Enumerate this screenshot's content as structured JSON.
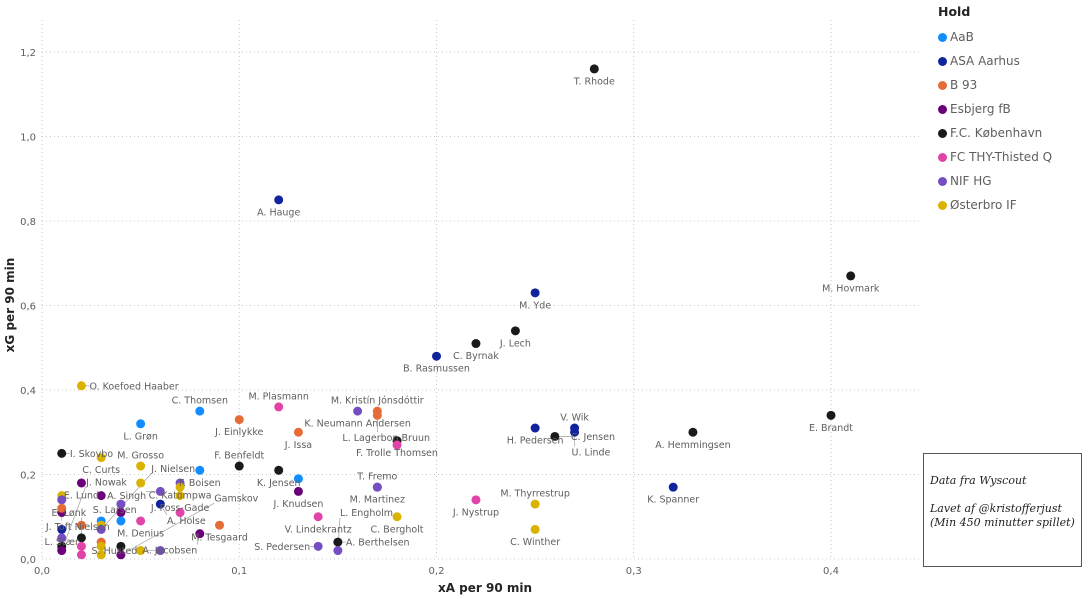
{
  "chart_data": {
    "type": "scatter",
    "xlabel": "xA per 90 min",
    "ylabel": "xG per 90 min",
    "xlim": [
      0,
      0.45
    ],
    "ylim": [
      0,
      1.25
    ],
    "xticks": [
      "0,0",
      "0,1",
      "0,2",
      "0,3",
      "0,4"
    ],
    "xtick_values": [
      0,
      0.1,
      0.2,
      0.3,
      0.4
    ],
    "yticks": [
      "0,0",
      "0,2",
      "0,4",
      "0,6",
      "0,8",
      "1,0",
      "1,2"
    ],
    "ytick_values": [
      0,
      0.2,
      0.4,
      0.6,
      0.8,
      1.0,
      1.2
    ],
    "grid": true,
    "legend_title": "Hold",
    "legend_placement": "top-right",
    "teams": [
      {
        "name": "AaB",
        "color": "#118DFF"
      },
      {
        "name": "ASA Aarhus",
        "color": "#12239E"
      },
      {
        "name": "B 93",
        "color": "#E66C37"
      },
      {
        "name": "Esbjerg fB",
        "color": "#6B007B"
      },
      {
        "name": "F.C. København",
        "color": "#1A1A1A"
      },
      {
        "name": "FC THY-Thisted Q",
        "color": "#E044A7"
      },
      {
        "name": "NIF HG",
        "color": "#744EC2"
      },
      {
        "name": "Østerbro IF",
        "color": "#D9B300"
      }
    ],
    "points": [
      {
        "name": "T. Rhode",
        "team": 4,
        "x": 0.28,
        "y": 1.16
      },
      {
        "name": "A. Hauge",
        "team": 1,
        "x": 0.12,
        "y": 0.85
      },
      {
        "name": "M. Hovmark",
        "team": 4,
        "x": 0.41,
        "y": 0.67
      },
      {
        "name": "M. Yde",
        "team": 1,
        "x": 0.25,
        "y": 0.63
      },
      {
        "name": "J. Lech",
        "team": 4,
        "x": 0.24,
        "y": 0.54
      },
      {
        "name": "C. Byrnak",
        "team": 4,
        "x": 0.22,
        "y": 0.51
      },
      {
        "name": "B. Rasmussen",
        "team": 1,
        "x": 0.2,
        "y": 0.48
      },
      {
        "name": "O. Koefoed Haaber",
        "team": 7,
        "x": 0.02,
        "y": 0.41
      },
      {
        "name": "K. Neumann Andersen",
        "team": 6,
        "x": 0.16,
        "y": 0.35
      },
      {
        "name": "M. Kristín Jónsdóttir",
        "team": 2,
        "x": 0.17,
        "y": 0.35
      },
      {
        "name": "L. Lagerbon Bruun",
        "team": 2,
        "x": 0.17,
        "y": 0.34
      },
      {
        "name": "E. Brandt",
        "team": 4,
        "x": 0.4,
        "y": 0.34
      },
      {
        "name": "H. Pedersen",
        "team": 1,
        "x": 0.25,
        "y": 0.31
      },
      {
        "name": "V. Wik",
        "team": 1,
        "x": 0.27,
        "y": 0.31
      },
      {
        "name": "C. Jensen",
        "team": 4,
        "x": 0.26,
        "y": 0.29
      },
      {
        "name": "U. Linde",
        "team": 1,
        "x": 0.27,
        "y": 0.3
      },
      {
        "name": "A. Hemmingsen",
        "team": 4,
        "x": 0.33,
        "y": 0.3
      },
      {
        "name": "K. Spanner",
        "team": 1,
        "x": 0.32,
        "y": 0.17
      },
      {
        "name": "J. Nystrup",
        "team": 5,
        "x": 0.22,
        "y": 0.14
      },
      {
        "name": "M. Thyrrestrup",
        "team": 7,
        "x": 0.25,
        "y": 0.13
      },
      {
        "name": "C. Winther",
        "team": 7,
        "x": 0.25,
        "y": 0.07
      },
      {
        "name": "F. Trolle Thomsen",
        "team": 4,
        "x": 0.18,
        "y": 0.28
      },
      {
        "name": "",
        "team": 5,
        "x": 0.18,
        "y": 0.27
      },
      {
        "name": "J. Issa",
        "team": 2,
        "x": 0.13,
        "y": 0.3
      },
      {
        "name": "M. Plasmann",
        "team": 5,
        "x": 0.12,
        "y": 0.36
      },
      {
        "name": "J. Einlykke",
        "team": 2,
        "x": 0.1,
        "y": 0.33
      },
      {
        "name": "C. Thomsen",
        "team": 0,
        "x": 0.08,
        "y": 0.35
      },
      {
        "name": "L. Grøn",
        "team": 0,
        "x": 0.05,
        "y": 0.32
      },
      {
        "name": "I. Skovbo",
        "team": 4,
        "x": 0.01,
        "y": 0.25
      },
      {
        "name": "C. Curts",
        "team": 7,
        "x": 0.03,
        "y": 0.24
      },
      {
        "name": "F. Boisen",
        "team": 0,
        "x": 0.08,
        "y": 0.21
      },
      {
        "name": "F. Benfeldt",
        "team": 4,
        "x": 0.1,
        "y": 0.22
      },
      {
        "name": "K. Jensen",
        "team": 4,
        "x": 0.12,
        "y": 0.21
      },
      {
        "name": "",
        "team": 0,
        "x": 0.13,
        "y": 0.19
      },
      {
        "name": "J. Knudsen",
        "team": 3,
        "x": 0.13,
        "y": 0.16
      },
      {
        "name": "M. Martinez",
        "team": 6,
        "x": 0.17,
        "y": 0.17
      },
      {
        "name": "T. Fremo",
        "team": 6,
        "x": 0.17,
        "y": 0.17
      },
      {
        "name": "V. Lindekrantz",
        "team": 5,
        "x": 0.14,
        "y": 0.1
      },
      {
        "name": "C. Bergholt",
        "team": 7,
        "x": 0.18,
        "y": 0.1
      },
      {
        "name": "A. Berthelsen",
        "team": 4,
        "x": 0.15,
        "y": 0.04
      },
      {
        "name": "S. Pedersen",
        "team": 6,
        "x": 0.14,
        "y": 0.03
      },
      {
        "name": "L. Engholm",
        "team": 6,
        "x": 0.15,
        "y": 0.02
      },
      {
        "name": "M. Grosso",
        "team": 7,
        "x": 0.05,
        "y": 0.22
      },
      {
        "name": "E. Lund",
        "team": 3,
        "x": 0.02,
        "y": 0.18
      },
      {
        "name": "C. Katompwa",
        "team": 6,
        "x": 0.07,
        "y": 0.18
      },
      {
        "name": "",
        "team": 7,
        "x": 0.07,
        "y": 0.17
      },
      {
        "name": "J. Foss-Gade",
        "team": 7,
        "x": 0.07,
        "y": 0.15
      },
      {
        "name": "A. Singh",
        "team": 6,
        "x": 0.06,
        "y": 0.16
      },
      {
        "name": "",
        "team": 7,
        "x": 0.05,
        "y": 0.18
      },
      {
        "name": "S. Larsen",
        "team": 3,
        "x": 0.03,
        "y": 0.15
      },
      {
        "name": "M. Tesgaard",
        "team": 2,
        "x": 0.09,
        "y": 0.08
      },
      {
        "name": "M. Denius",
        "team": 5,
        "x": 0.05,
        "y": 0.09
      },
      {
        "name": "",
        "team": 5,
        "x": 0.07,
        "y": 0.11
      },
      {
        "name": "A. Holse",
        "team": 1,
        "x": 0.06,
        "y": 0.13
      },
      {
        "name": "A. Jacobsen",
        "team": 3,
        "x": 0.08,
        "y": 0.06
      },
      {
        "name": "S. Husted",
        "team": 6,
        "x": 0.06,
        "y": 0.02
      },
      {
        "name": "J. Toft Nielsen",
        "team": 3,
        "x": 0.01,
        "y": 0.11
      },
      {
        "name": "",
        "team": 7,
        "x": 0.01,
        "y": 0.15
      },
      {
        "name": "",
        "team": 6,
        "x": 0.01,
        "y": 0.14
      },
      {
        "name": "",
        "team": 2,
        "x": 0.01,
        "y": 0.12
      },
      {
        "name": "L. Stær",
        "team": 1,
        "x": 0.01,
        "y": 0.07
      },
      {
        "name": "",
        "team": 6,
        "x": 0.01,
        "y": 0.05
      },
      {
        "name": "",
        "team": 4,
        "x": 0.01,
        "y": 0.03
      },
      {
        "name": "J. Nowak",
        "team": 3,
        "x": 0.01,
        "y": 0.02
      },
      {
        "name": "",
        "team": 4,
        "x": 0.02,
        "y": 0.05
      },
      {
        "name": "",
        "team": 2,
        "x": 0.02,
        "y": 0.08
      },
      {
        "name": "",
        "team": 5,
        "x": 0.02,
        "y": 0.03
      },
      {
        "name": "E. Lønk",
        "team": 5,
        "x": 0.02,
        "y": 0.01
      },
      {
        "name": "",
        "team": 0,
        "x": 0.03,
        "y": 0.09
      },
      {
        "name": "",
        "team": 7,
        "x": 0.03,
        "y": 0.08
      },
      {
        "name": "J. Nielsen",
        "team": 6,
        "x": 0.03,
        "y": 0.07
      },
      {
        "name": "",
        "team": 2,
        "x": 0.03,
        "y": 0.04
      },
      {
        "name": "",
        "team": 7,
        "x": 0.03,
        "y": 0.03
      },
      {
        "name": "",
        "team": 7,
        "x": 0.03,
        "y": 0.01
      },
      {
        "name": "",
        "team": 6,
        "x": 0.04,
        "y": 0.13
      },
      {
        "name": "",
        "team": 3,
        "x": 0.04,
        "y": 0.11
      },
      {
        "name": "",
        "team": 0,
        "x": 0.04,
        "y": 0.09
      },
      {
        "name": "",
        "team": 4,
        "x": 0.04,
        "y": 0.03
      },
      {
        "name": "Gamskov",
        "team": 3,
        "x": 0.04,
        "y": 0.01
      },
      {
        "name": "",
        "team": 7,
        "x": 0.05,
        "y": 0.02
      }
    ]
  },
  "note": {
    "line1": "Data fra Wyscout",
    "line2": "Lavet af @kristofferjust",
    "line3": "(Min 450 minutter spillet)"
  }
}
